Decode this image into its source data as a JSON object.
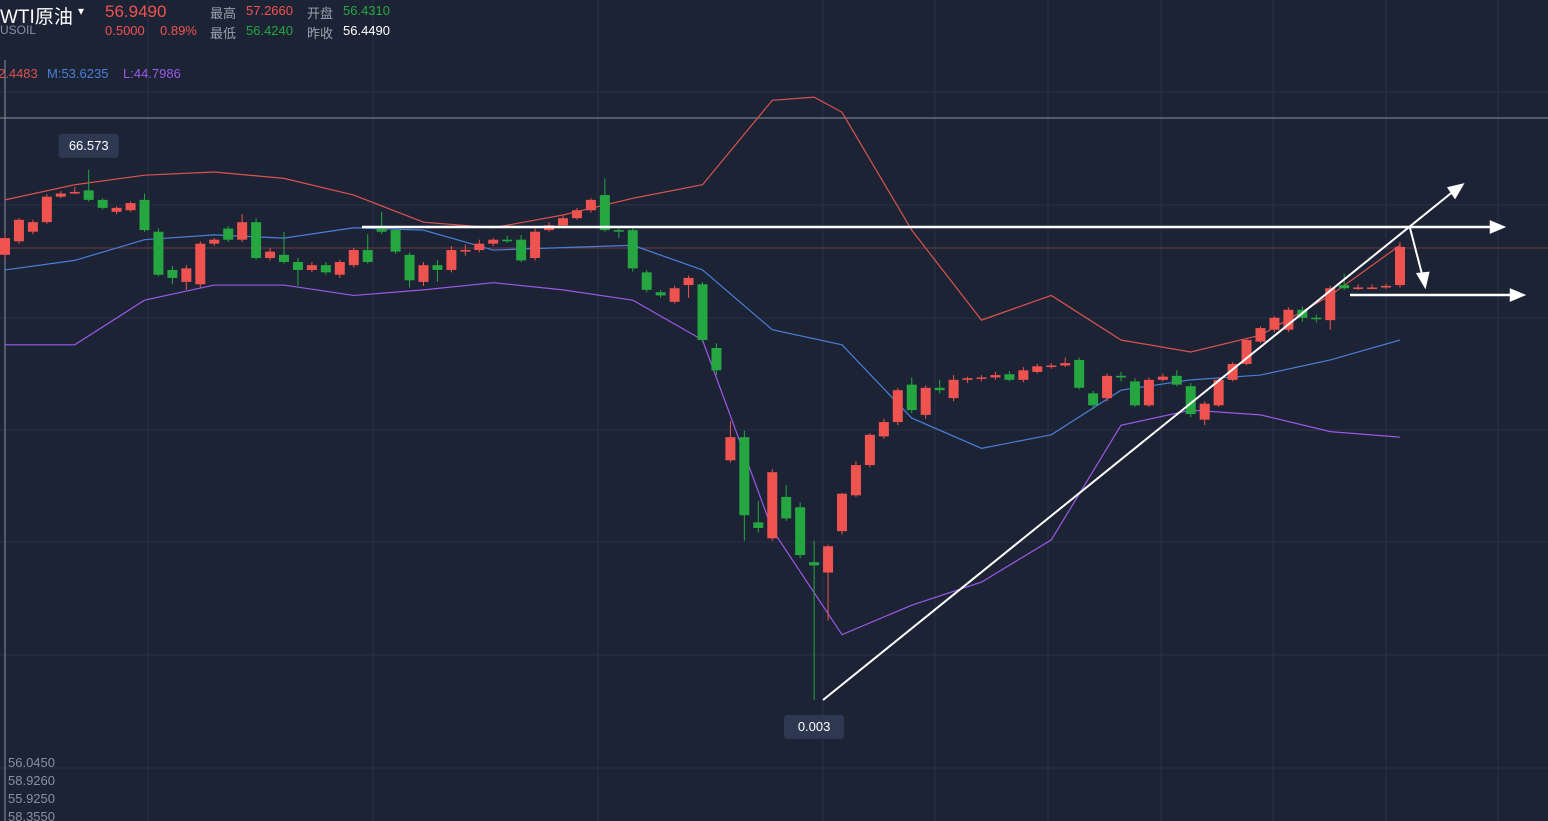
{
  "header": {
    "name": "WTI原油",
    "symbol": "USOIL",
    "price": "56.9490",
    "change": "0.5000",
    "change_pct": "0.89%",
    "high_label": "最高",
    "high": "57.2660",
    "open_label": "开盘",
    "open": "56.4310",
    "low_label": "最低",
    "low": "56.4240",
    "prev_label": "昨收",
    "prev": "56.4490"
  },
  "indicators": {
    "upper": "2.4483",
    "middle": "M:53.6235",
    "lower": "L:44.7986"
  },
  "footer_values": [
    "56.0450",
    "58.9260",
    "55.9250",
    "58.3550"
  ],
  "chart_data": {
    "type": "candlestick",
    "ylim": [
      -15.2,
      87.9
    ],
    "up_color": "#ef5350",
    "down_color": "#26a641",
    "annotations": [
      "66.573",
      "0.003"
    ],
    "candles": [
      [
        55.9,
        58.5,
        55.5,
        58.0
      ],
      [
        57.6,
        60.5,
        57.3,
        60.3
      ],
      [
        58.8,
        60.3,
        58.5,
        60.0
      ],
      [
        60.0,
        63.5,
        59.8,
        63.2
      ],
      [
        63.2,
        63.9,
        63.0,
        63.6
      ],
      [
        63.6,
        64.4,
        63.5,
        63.8
      ],
      [
        64.0,
        66.573,
        62.6,
        62.8
      ],
      [
        62.8,
        63.0,
        61.6,
        61.8
      ],
      [
        61.3,
        62.0,
        61.0,
        61.8
      ],
      [
        61.5,
        62.6,
        61.3,
        62.4
      ],
      [
        62.8,
        63.6,
        58.8,
        59.0
      ],
      [
        58.8,
        59.2,
        53.2,
        53.4
      ],
      [
        54.0,
        54.5,
        52.2,
        53.0
      ],
      [
        52.5,
        54.6,
        51.5,
        54.2
      ],
      [
        52.2,
        57.6,
        51.8,
        57.3
      ],
      [
        57.3,
        58.0,
        57.0,
        57.8
      ],
      [
        59.2,
        59.5,
        57.5,
        57.8
      ],
      [
        57.8,
        61.0,
        57.5,
        60.0
      ],
      [
        60.0,
        60.5,
        55.3,
        55.5
      ],
      [
        55.5,
        56.8,
        55.2,
        56.3
      ],
      [
        55.9,
        58.8,
        54.8,
        55.0
      ],
      [
        55.0,
        55.5,
        52.0,
        54.0
      ],
      [
        54.0,
        55.0,
        53.7,
        54.6
      ],
      [
        54.6,
        55.0,
        53.4,
        53.7
      ],
      [
        53.4,
        55.3,
        53.0,
        55.0
      ],
      [
        54.6,
        56.8,
        54.3,
        56.5
      ],
      [
        56.5,
        58.5,
        54.8,
        55.0
      ],
      [
        59.2,
        61.3,
        58.5,
        58.8
      ],
      [
        59.0,
        59.3,
        56.0,
        56.3
      ],
      [
        55.9,
        56.2,
        51.8,
        52.7
      ],
      [
        52.5,
        55.0,
        52.0,
        54.6
      ],
      [
        54.6,
        55.2,
        52.5,
        54.0
      ],
      [
        54.0,
        57.0,
        53.7,
        56.5
      ],
      [
        56.3,
        57.2,
        55.8,
        56.5
      ],
      [
        56.5,
        57.8,
        56.2,
        57.3
      ],
      [
        57.3,
        58.0,
        57.0,
        57.8
      ],
      [
        57.8,
        58.3,
        57.4,
        57.6
      ],
      [
        57.8,
        58.4,
        55.0,
        55.2
      ],
      [
        55.5,
        59.2,
        55.2,
        58.8
      ],
      [
        59.0,
        60.0,
        58.8,
        59.6
      ],
      [
        59.6,
        60.8,
        59.4,
        60.5
      ],
      [
        60.5,
        61.8,
        60.3,
        61.5
      ],
      [
        61.5,
        63.0,
        61.2,
        62.8
      ],
      [
        63.4,
        65.5,
        58.8,
        59.0
      ],
      [
        59.0,
        59.2,
        58.0,
        58.8
      ],
      [
        59.0,
        59.3,
        53.8,
        54.2
      ],
      [
        53.7,
        54.0,
        51.2,
        51.5
      ],
      [
        51.2,
        51.5,
        50.5,
        50.8
      ],
      [
        50.0,
        52.0,
        49.8,
        51.7
      ],
      [
        52.1,
        53.3,
        50.5,
        53.0
      ],
      [
        52.2,
        52.5,
        45.0,
        45.2
      ],
      [
        44.2,
        44.8,
        40.8,
        41.4
      ],
      [
        30.1,
        35.0,
        29.8,
        33.0
      ],
      [
        33.0,
        33.8,
        20.0,
        23.2
      ],
      [
        22.3,
        25.0,
        21.0,
        21.6
      ],
      [
        20.3,
        29.0,
        20.0,
        28.6
      ],
      [
        25.5,
        27.0,
        22.5,
        22.8
      ],
      [
        24.2,
        24.8,
        17.8,
        18.2
      ],
      [
        17.3,
        20.0,
        0.003,
        16.9
      ],
      [
        16.0,
        19.5,
        10.0,
        19.3
      ],
      [
        21.2,
        26.0,
        20.8,
        25.9
      ],
      [
        25.7,
        30.0,
        25.5,
        29.5
      ],
      [
        29.5,
        33.5,
        29.2,
        33.3
      ],
      [
        33.1,
        35.3,
        32.8,
        34.9
      ],
      [
        34.9,
        39.2,
        34.5,
        38.9
      ],
      [
        39.6,
        40.5,
        36.0,
        36.4
      ],
      [
        35.8,
        39.5,
        35.3,
        39.2
      ],
      [
        39.2,
        40.2,
        38.5,
        38.9
      ],
      [
        37.9,
        40.8,
        37.5,
        40.2
      ],
      [
        40.2,
        40.6,
        39.8,
        40.4
      ],
      [
        40.4,
        40.8,
        40.0,
        40.5
      ],
      [
        40.5,
        41.2,
        40.2,
        40.8
      ],
      [
        40.9,
        41.3,
        40.0,
        40.2
      ],
      [
        40.2,
        41.8,
        39.9,
        41.4
      ],
      [
        41.2,
        42.2,
        41.0,
        41.9
      ],
      [
        41.9,
        42.3,
        41.6,
        42.0
      ],
      [
        42.0,
        43.0,
        41.8,
        42.3
      ],
      [
        42.7,
        43.0,
        39.0,
        39.2
      ],
      [
        38.5,
        38.8,
        36.5,
        37.0
      ],
      [
        37.9,
        41.0,
        37.5,
        40.7
      ],
      [
        40.7,
        41.2,
        40.0,
        40.5
      ],
      [
        40.0,
        40.4,
        36.8,
        37.0
      ],
      [
        37.0,
        40.5,
        36.8,
        40.2
      ],
      [
        40.2,
        41.0,
        40.0,
        40.6
      ],
      [
        40.7,
        41.4,
        39.4,
        39.6
      ],
      [
        39.4,
        39.8,
        35.5,
        35.9
      ],
      [
        35.2,
        37.5,
        34.5,
        37.2
      ],
      [
        37.0,
        40.5,
        36.8,
        40.2
      ],
      [
        40.2,
        42.4,
        40.0,
        42.2
      ],
      [
        42.2,
        45.4,
        42.0,
        45.2
      ],
      [
        45.0,
        46.9,
        44.8,
        46.7
      ],
      [
        46.5,
        48.2,
        46.2,
        48.0
      ],
      [
        46.5,
        49.3,
        46.2,
        49.0
      ],
      [
        49.0,
        49.4,
        47.5,
        48.0
      ],
      [
        48.0,
        48.4,
        47.4,
        47.9
      ],
      [
        47.7,
        52.0,
        46.5,
        51.7
      ],
      [
        52.1,
        53.5,
        51.5,
        51.7
      ],
      [
        51.7,
        52.2,
        51.5,
        51.8
      ],
      [
        51.8,
        52.2,
        51.6,
        51.8
      ],
      [
        51.8,
        52.3,
        51.6,
        52.0
      ],
      [
        52.1,
        57.5,
        51.8,
        56.9
      ]
    ],
    "series": [
      {
        "color": "#d9534f",
        "x": [
          0,
          5,
          10,
          15,
          20,
          25,
          30,
          35,
          40,
          45,
          50,
          55,
          58,
          60,
          65,
          70,
          75,
          80,
          85,
          90,
          95,
          100
        ],
        "values": [
          62.8,
          64.7,
          65.9,
          66.3,
          65.5,
          63.4,
          60.0,
          59.3,
          60.9,
          63.0,
          64.7,
          75.3,
          75.7,
          73.8,
          59.0,
          47.7,
          50.8,
          45.2,
          43.7,
          45.8,
          50.8,
          57.1
        ]
      },
      {
        "color": "#4a7fd6",
        "x": [
          0,
          5,
          10,
          15,
          20,
          25,
          30,
          35,
          40,
          45,
          50,
          55,
          60,
          65,
          70,
          75,
          80,
          85,
          90,
          95,
          100
        ],
        "values": [
          54.0,
          55.2,
          57.8,
          58.4,
          58.0,
          59.3,
          59.0,
          56.5,
          56.8,
          57.1,
          54.0,
          46.5,
          44.6,
          35.4,
          31.6,
          33.3,
          38.9,
          40.2,
          40.8,
          42.7,
          45.2
        ]
      },
      {
        "color": "#9b59e6",
        "x": [
          0,
          5,
          10,
          15,
          20,
          25,
          30,
          35,
          40,
          45,
          50,
          55,
          60,
          65,
          70,
          75,
          80,
          85,
          90,
          95,
          100
        ],
        "values": [
          44.6,
          44.6,
          50.2,
          52.1,
          52.1,
          50.8,
          51.5,
          52.4,
          51.5,
          50.2,
          45.2,
          21.4,
          8.2,
          11.9,
          14.8,
          20.1,
          34.5,
          36.4,
          35.8,
          33.7,
          33.0
        ]
      }
    ]
  }
}
